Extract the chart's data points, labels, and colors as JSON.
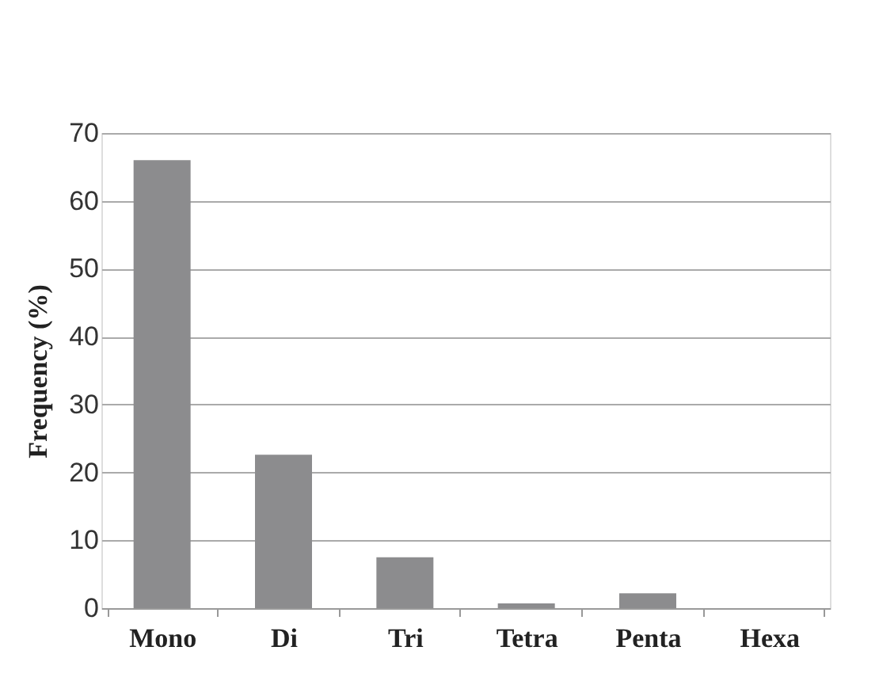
{
  "chart_data": {
    "type": "bar",
    "ylabel": "Frequency (%)",
    "categories": [
      "Mono",
      "Di",
      "Tri",
      "Tetra",
      "Penta",
      "Hexa"
    ],
    "values": [
      66,
      22.6,
      7.5,
      0.7,
      2.2,
      0
    ],
    "color": "#8c8c8e",
    "ylim": [
      0,
      70
    ],
    "yticks": [
      0,
      10,
      20,
      30,
      40,
      50,
      60,
      70
    ],
    "grid": "y"
  }
}
